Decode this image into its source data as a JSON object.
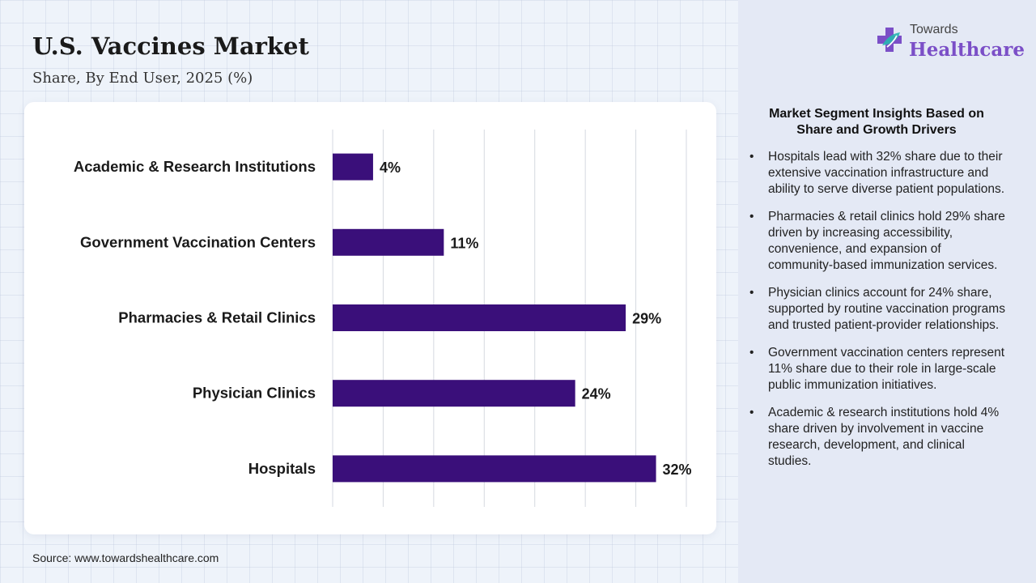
{
  "header": {
    "title": "U.S. Vaccines Market",
    "subtitle": "Share, By End User, 2025 (%)"
  },
  "logo": {
    "line1": "Towards",
    "line2": "Healthcare",
    "icon": "medical-cross-icon"
  },
  "colors": {
    "bar": "#3a0f7a",
    "brand": "#7b4fc7"
  },
  "chart_data": {
    "type": "bar",
    "orientation": "horizontal",
    "categories": [
      "Academic & Research Institutions",
      "Government Vaccination Centers",
      "Pharmacies & Retail Clinics",
      "Physician Clinics",
      "Hospitals"
    ],
    "values": [
      4,
      11,
      29,
      24,
      32
    ],
    "value_labels": [
      "4%",
      "11%",
      "29%",
      "24%",
      "32%"
    ],
    "xlim": [
      0,
      35
    ],
    "grid": true
  },
  "insights": {
    "title": "Market Segment Insights Based on Share and Growth Drivers",
    "items": [
      "Hospitals lead with 32% share due to their extensive vaccination infrastructure and ability to serve diverse patient populations.",
      "Pharmacies & retail clinics hold 29% share driven by increasing accessibility, convenience, and expansion of community-based immunization services.",
      "Physician clinics account for 24% share, supported by routine vaccination programs and trusted patient-provider relationships.",
      "Government vaccination centers represent 11% share due to their role in large-scale public immunization initiatives.",
      "Academic & research institutions hold 4% share driven by involvement in vaccine research, development, and clinical studies."
    ]
  },
  "footer": {
    "source": "Source: www.towardshealthcare.com"
  }
}
